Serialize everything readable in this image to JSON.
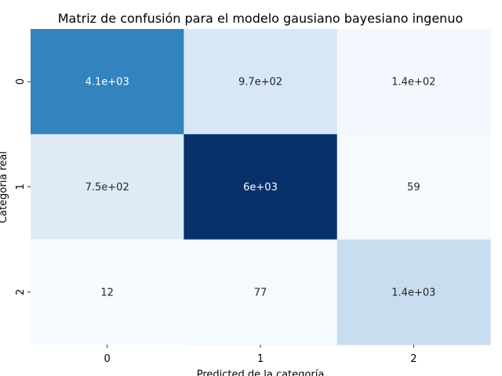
{
  "chart_data": {
    "type": "heatmap",
    "title": "Matriz de confusión para el modelo gausiano bayesiano ingenuo",
    "xlabel": "Predicted de la categoría",
    "ylabel": "Categoría real",
    "x_categories": [
      "0",
      "1",
      "2"
    ],
    "y_categories": [
      "0",
      "1",
      "2"
    ],
    "values": [
      [
        4100,
        970,
        140
      ],
      [
        750,
        6000,
        59
      ],
      [
        12,
        77,
        1400
      ]
    ],
    "cell_labels": [
      [
        "4.1e+03",
        "9.7e+02",
        "1.4e+02"
      ],
      [
        "7.5e+02",
        "6e+03",
        "59"
      ],
      [
        "12",
        "77",
        "1.4e+03"
      ]
    ],
    "colormap": "Blues",
    "vmin": 12,
    "vmax": 6000,
    "colorbar": false,
    "grid": false
  }
}
